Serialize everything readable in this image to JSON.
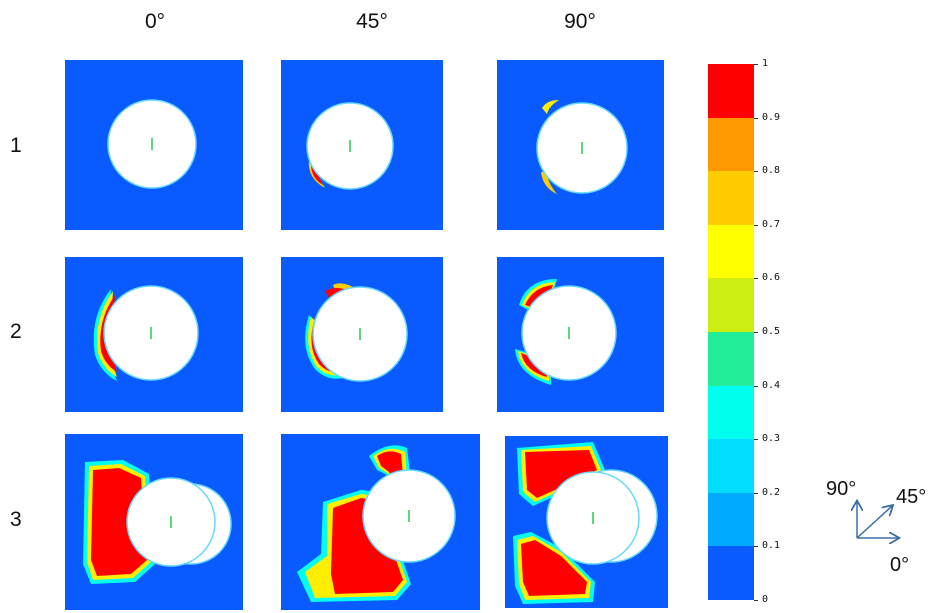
{
  "columns": [
    "0°",
    "45°",
    "90°"
  ],
  "rows": [
    "1",
    "2",
    "3"
  ],
  "colorbar": {
    "ticks": [
      "1",
      "0.9",
      "0.8",
      "0.7",
      "0.6",
      "0.5",
      "0.4",
      "0.3",
      "0.2",
      "0.1",
      "0"
    ],
    "colors_top_to_bottom": [
      "#ff0000",
      "#ff9900",
      "#ffcc00",
      "#ffff00",
      "#ccee11",
      "#22ee99",
      "#00ffee",
      "#00ddff",
      "#00aaff",
      "#0a5bff"
    ]
  },
  "direction_key": {
    "up": "90°",
    "diag": "45°",
    "right": "0°",
    "arrow_color": "#3b6ea8"
  },
  "colors": {
    "background_field": "#0a5bff",
    "cylinder": "#ffffff",
    "cylinder_edge": "#66d9ff",
    "marker": "#22cc55"
  }
}
